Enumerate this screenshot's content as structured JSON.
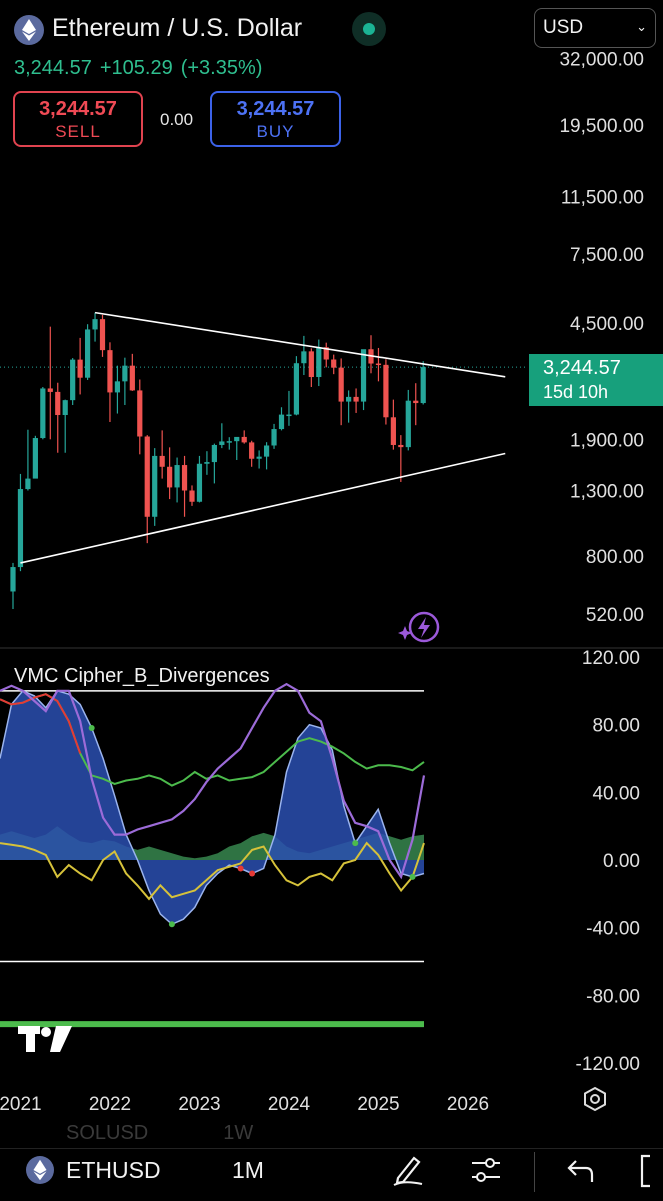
{
  "header": {
    "title": "Ethereum / U.S. Dollar",
    "price": "3,244.57",
    "change": "+105.29",
    "change_pct": "(+3.35%)",
    "sell_price": "3,244.57",
    "sell_label": "SELL",
    "spread": "0.00",
    "buy_price": "3,244.57",
    "buy_label": "BUY",
    "currency": "USD"
  },
  "price_tag": {
    "price": "3,244.57",
    "countdown": "15d 10h"
  },
  "indicator": {
    "name": "VMC Cipher_B_Divergences"
  },
  "toolbar": {
    "symbol": "ETHUSD",
    "interval": "1M",
    "faded_symbol": "SOLUSD",
    "faded_interval": "1W",
    "icons": [
      "eth-icon",
      "draw-icon",
      "settings-sliders-icon",
      "undo-icon",
      "fullscreen-icon"
    ]
  },
  "colors": {
    "up": "#26a69a",
    "down": "#ef5350",
    "trendline": "#ffffff",
    "wave_fill": "#2a4fb0",
    "money_flow_green": "#3f9a5a",
    "rsi_purple": "#9c6bd8",
    "mfi_yellow": "#d6c23a",
    "stoch_green": "#4cbb4c",
    "stoch_red": "#e53935"
  },
  "chart_data": [
    {
      "type": "candlestick",
      "title": "Ethereum / U.S. Dollar",
      "scale": "log",
      "y_ticks": [
        "32,000.00",
        "19,500.00",
        "11,500.00",
        "7,500.00",
        "4,500.00",
        "1,900.00",
        "1,300.00",
        "800.00",
        "520.00"
      ],
      "y_tick_values": [
        32000,
        19500,
        11500,
        7500,
        4500,
        1900,
        1300,
        800,
        520
      ],
      "x_ticks": [
        "2021",
        "2022",
        "2023",
        "2024",
        "2025",
        "2026"
      ],
      "last_price": 3244.57,
      "candles": [
        {
          "date": "2020-12",
          "o": 615,
          "h": 760,
          "l": 540,
          "c": 737
        },
        {
          "date": "2021-01",
          "o": 737,
          "h": 1470,
          "l": 715,
          "c": 1314
        },
        {
          "date": "2021-02",
          "o": 1314,
          "h": 2040,
          "l": 1300,
          "c": 1420
        },
        {
          "date": "2021-03",
          "o": 1420,
          "h": 1950,
          "l": 1430,
          "c": 1918
        },
        {
          "date": "2021-04",
          "o": 1918,
          "h": 2800,
          "l": 1900,
          "c": 2770
        },
        {
          "date": "2021-05",
          "o": 2770,
          "h": 4380,
          "l": 1900,
          "c": 2700
        },
        {
          "date": "2021-06",
          "o": 2700,
          "h": 2890,
          "l": 1720,
          "c": 2275
        },
        {
          "date": "2021-07",
          "o": 2275,
          "h": 2550,
          "l": 1720,
          "c": 2540
        },
        {
          "date": "2021-08",
          "o": 2540,
          "h": 3470,
          "l": 2450,
          "c": 3430
        },
        {
          "date": "2021-09",
          "o": 3430,
          "h": 4030,
          "l": 2650,
          "c": 3000
        },
        {
          "date": "2021-10",
          "o": 3000,
          "h": 4460,
          "l": 2950,
          "c": 4290
        },
        {
          "date": "2021-11",
          "o": 4290,
          "h": 4860,
          "l": 3920,
          "c": 4630
        },
        {
          "date": "2021-12",
          "o": 4630,
          "h": 4780,
          "l": 3500,
          "c": 3680
        },
        {
          "date": "2022-01",
          "o": 3680,
          "h": 3900,
          "l": 2160,
          "c": 2690
        },
        {
          "date": "2022-02",
          "o": 2690,
          "h": 3280,
          "l": 2300,
          "c": 2920
        },
        {
          "date": "2022-03",
          "o": 2920,
          "h": 3480,
          "l": 2450,
          "c": 3280
        },
        {
          "date": "2022-04",
          "o": 3280,
          "h": 3580,
          "l": 2720,
          "c": 2730
        },
        {
          "date": "2022-05",
          "o": 2730,
          "h": 2960,
          "l": 1700,
          "c": 1940
        },
        {
          "date": "2022-06",
          "o": 1940,
          "h": 1960,
          "l": 880,
          "c": 1070
        },
        {
          "date": "2022-07",
          "o": 1070,
          "h": 1780,
          "l": 1000,
          "c": 1680
        },
        {
          "date": "2022-08",
          "o": 1680,
          "h": 2030,
          "l": 1420,
          "c": 1550
        },
        {
          "date": "2022-09",
          "o": 1550,
          "h": 1790,
          "l": 1220,
          "c": 1330
        },
        {
          "date": "2022-10",
          "o": 1330,
          "h": 1660,
          "l": 1190,
          "c": 1570
        },
        {
          "date": "2022-11",
          "o": 1570,
          "h": 1680,
          "l": 1070,
          "c": 1300
        },
        {
          "date": "2022-12",
          "o": 1300,
          "h": 1350,
          "l": 1160,
          "c": 1196
        },
        {
          "date": "2023-01",
          "o": 1196,
          "h": 1680,
          "l": 1190,
          "c": 1585
        },
        {
          "date": "2023-02",
          "o": 1585,
          "h": 1740,
          "l": 1460,
          "c": 1605
        },
        {
          "date": "2023-03",
          "o": 1605,
          "h": 1840,
          "l": 1370,
          "c": 1822
        },
        {
          "date": "2023-04",
          "o": 1822,
          "h": 2140,
          "l": 1780,
          "c": 1870
        },
        {
          "date": "2023-05",
          "o": 1870,
          "h": 1930,
          "l": 1760,
          "c": 1874
        },
        {
          "date": "2023-06",
          "o": 1874,
          "h": 1930,
          "l": 1630,
          "c": 1934
        },
        {
          "date": "2023-07",
          "o": 1934,
          "h": 2030,
          "l": 1840,
          "c": 1857
        },
        {
          "date": "2023-08",
          "o": 1857,
          "h": 1880,
          "l": 1550,
          "c": 1645
        },
        {
          "date": "2023-09",
          "o": 1645,
          "h": 1750,
          "l": 1530,
          "c": 1671
        },
        {
          "date": "2023-10",
          "o": 1671,
          "h": 1860,
          "l": 1520,
          "c": 1815
        },
        {
          "date": "2023-11",
          "o": 1815,
          "h": 2130,
          "l": 1770,
          "c": 2050
        },
        {
          "date": "2023-12",
          "o": 2050,
          "h": 2410,
          "l": 2030,
          "c": 2282
        },
        {
          "date": "2024-01",
          "o": 2282,
          "h": 2720,
          "l": 2100,
          "c": 2283
        },
        {
          "date": "2024-02",
          "o": 2283,
          "h": 3520,
          "l": 2270,
          "c": 3340
        },
        {
          "date": "2024-03",
          "o": 3340,
          "h": 4090,
          "l": 3060,
          "c": 3647
        },
        {
          "date": "2024-04",
          "o": 3647,
          "h": 3730,
          "l": 2800,
          "c": 3015
        },
        {
          "date": "2024-05",
          "o": 3015,
          "h": 3980,
          "l": 2820,
          "c": 3760
        },
        {
          "date": "2024-06",
          "o": 3760,
          "h": 3890,
          "l": 3240,
          "c": 3433
        },
        {
          "date": "2024-07",
          "o": 3433,
          "h": 3560,
          "l": 3080,
          "c": 3232
        },
        {
          "date": "2024-08",
          "o": 3232,
          "h": 3460,
          "l": 2110,
          "c": 2513
        },
        {
          "date": "2024-09",
          "o": 2513,
          "h": 2730,
          "l": 2150,
          "c": 2602
        },
        {
          "date": "2024-10",
          "o": 2602,
          "h": 2770,
          "l": 2310,
          "c": 2513
        },
        {
          "date": "2024-11",
          "o": 2513,
          "h": 3680,
          "l": 2360,
          "c": 3705
        },
        {
          "date": "2024-12",
          "o": 3705,
          "h": 4110,
          "l": 3100,
          "c": 3332
        },
        {
          "date": "2025-01",
          "o": 3332,
          "h": 3740,
          "l": 2920,
          "c": 3300
        },
        {
          "date": "2025-02",
          "o": 3300,
          "h": 3440,
          "l": 2120,
          "c": 2237
        },
        {
          "date": "2025-03",
          "o": 2237,
          "h": 2550,
          "l": 1760,
          "c": 1822
        },
        {
          "date": "2025-04",
          "o": 1822,
          "h": 1960,
          "l": 1385,
          "c": 1793
        },
        {
          "date": "2025-05",
          "o": 1793,
          "h": 2740,
          "l": 1750,
          "c": 2530
        },
        {
          "date": "2025-06",
          "o": 2530,
          "h": 2880,
          "l": 2110,
          "c": 2486
        },
        {
          "date": "2025-07",
          "o": 2486,
          "h": 3390,
          "l": 2460,
          "c": 3244.57
        }
      ],
      "trendlines": [
        {
          "name": "upper",
          "from": {
            "date": "2021-11",
            "price": 4860
          },
          "to": {
            "date": "2026-06",
            "price": 3020
          }
        },
        {
          "name": "lower",
          "from": {
            "date": "2021-01",
            "price": 760
          },
          "to": {
            "date": "2026-06",
            "price": 1710
          }
        }
      ]
    },
    {
      "type": "line",
      "title": "VMC Cipher_B_Divergences",
      "y_ticks": [
        "120.00",
        "80.00",
        "40.00",
        "0.00",
        "-40.00",
        "-80.00",
        "-120.00"
      ],
      "y_tick_values": [
        120,
        80,
        40,
        0,
        -40,
        -80,
        -120
      ],
      "ylim": [
        -125,
        125
      ],
      "reference_levels": [
        100,
        -60,
        -97
      ],
      "series": [
        {
          "key": "wt1",
          "values": [
            60,
            92,
            100,
            97,
            90,
            100,
            98,
            92,
            78,
            60,
            38,
            15,
            0,
            -18,
            -32,
            -38,
            -35,
            -28,
            -15,
            -8,
            -3,
            -5,
            -8,
            -5,
            15,
            52,
            72,
            80,
            78,
            65,
            32,
            10,
            20,
            30,
            10,
            -8,
            -10,
            -8
          ]
        },
        {
          "key": "rsi",
          "values": [
            100,
            103,
            100,
            94,
            88,
            100,
            100,
            82,
            48,
            25,
            15,
            15,
            18,
            20,
            22,
            24,
            29,
            36,
            46,
            54,
            60,
            66,
            78,
            90,
            100,
            104,
            100,
            87,
            82,
            60,
            35,
            22,
            20,
            17,
            0,
            -10,
            12,
            50
          ]
        },
        {
          "key": "mfi",
          "values": [
            10,
            9,
            8,
            6,
            3,
            -10,
            -3,
            -8,
            -12,
            0,
            5,
            -8,
            -15,
            -23,
            -15,
            -22,
            -20,
            -18,
            -12,
            -6,
            -4,
            -2,
            6,
            8,
            -3,
            -12,
            -15,
            -10,
            -8,
            -12,
            -2,
            0,
            10,
            3,
            -8,
            -18,
            -10,
            10
          ]
        },
        {
          "key": "money_flow",
          "values": [
            15,
            17,
            15,
            13,
            15,
            20,
            15,
            11,
            10,
            12,
            11,
            8,
            6,
            8,
            6,
            4,
            2,
            1,
            2,
            4,
            8,
            10,
            14,
            16,
            14,
            8,
            5,
            4,
            6,
            8,
            10,
            12,
            14,
            16,
            14,
            12,
            14,
            15
          ]
        },
        {
          "key": "stoch",
          "values": [
            95,
            92,
            93,
            96,
            98,
            94,
            82,
            63,
            50,
            48,
            45,
            47,
            48,
            50,
            48,
            44,
            47,
            52,
            48,
            50,
            47,
            48,
            49,
            52,
            58,
            64,
            70,
            72,
            70,
            67,
            63,
            58,
            54,
            56,
            56,
            55,
            53,
            58
          ]
        }
      ]
    }
  ]
}
